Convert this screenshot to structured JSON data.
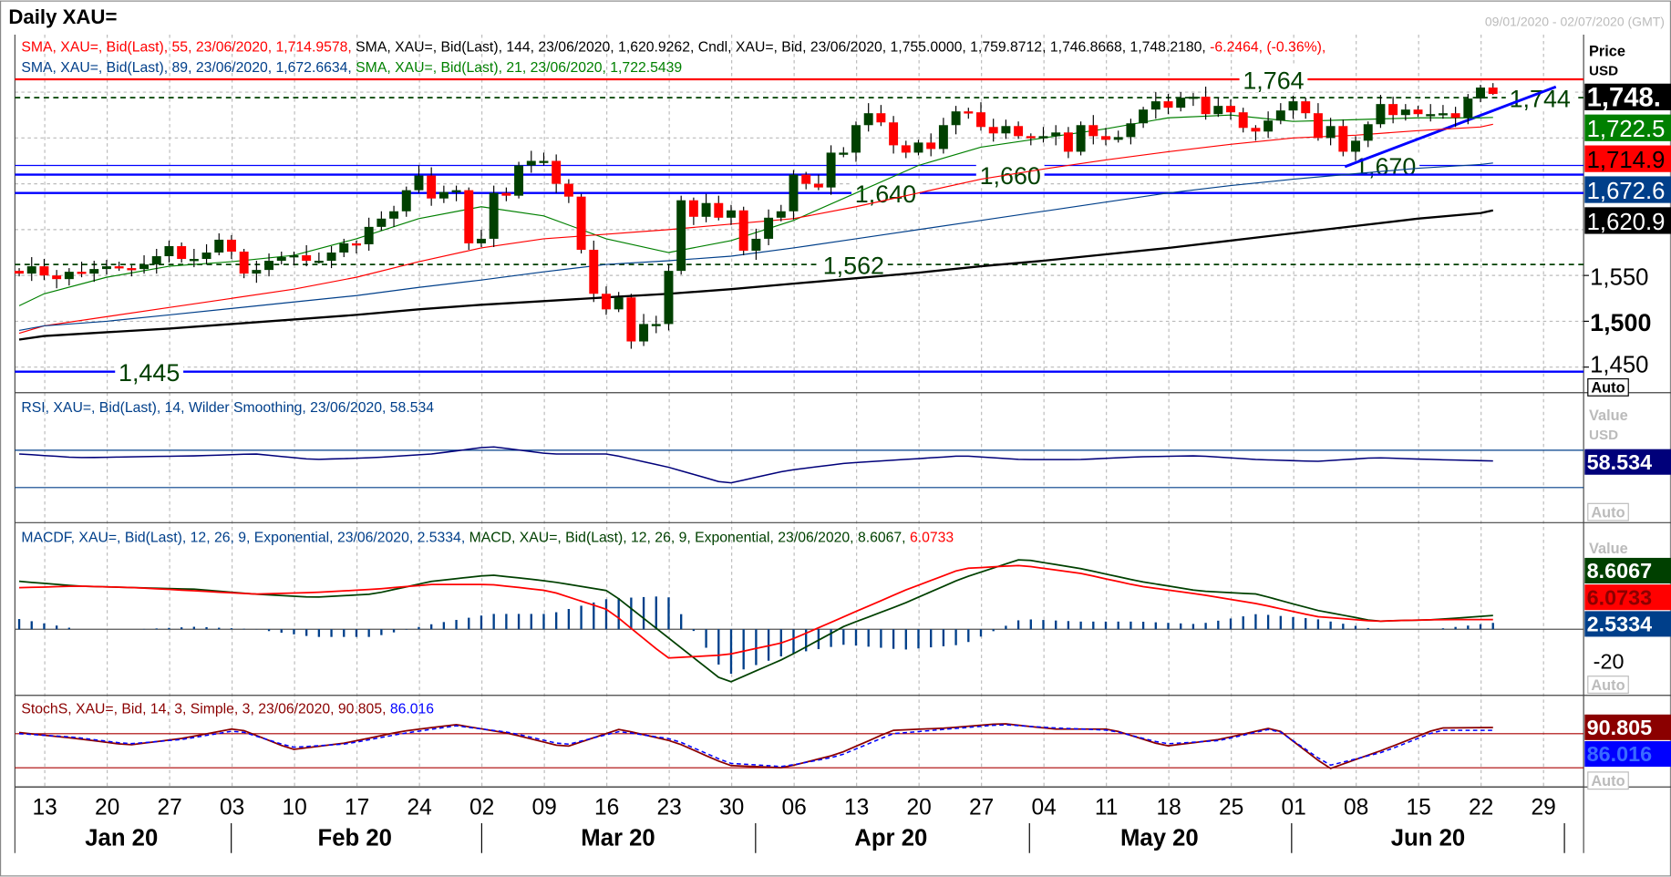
{
  "title": "Daily XAU=",
  "date_range": "09/01/2020 - 02/07/2020 (GMT)",
  "legend": {
    "line1": [
      {
        "text": "SMA, XAU=, Bid(Last),  55, 23/06/2020, 1,714.9578, ",
        "color": "#ff0000"
      },
      {
        "text": "SMA, XAU=, Bid(Last),  144, 23/06/2020, 1,620.9262, Cndl, XAU=, Bid, 23/06/2020, 1,755.0000, 1,759.8712, 1,746.8668, 1,748.2180, ",
        "color": "#000000"
      },
      {
        "text": "-6.2464, (-0.36%),",
        "color": "#ff0000"
      }
    ],
    "line2": [
      {
        "text": "SMA, XAU=, Bid(Last),  89, 23/06/2020, 1,672.6634, ",
        "color": "#003f8a"
      },
      {
        "text": "SMA, XAU=, Bid(Last),  21, 23/06/2020, 1,722.5439",
        "color": "#008000"
      }
    ]
  },
  "axis": {
    "price_title": "Price",
    "price_unit": "USD",
    "auto_label": "Auto",
    "value_title": "Value",
    "value_unit": "USD",
    "price_ticks": [
      "1,550",
      "1,500",
      "1,450"
    ],
    "price_tick_values": [
      1550,
      1500,
      1450
    ],
    "macd_tick": "-20",
    "badges": [
      {
        "text": "1,748.",
        "bg": "#000000",
        "fg": "#ffffff",
        "bold": true,
        "value": 1748.2
      },
      {
        "text": "1,722.5",
        "bg": "#008000",
        "fg": "#ffffff",
        "value": 1722.5
      },
      {
        "text": "1,714.9",
        "bg": "#ff0000",
        "fg": "#000000",
        "value": 1714.9
      },
      {
        "text": "1,672.6",
        "bg": "#003f8a",
        "fg": "#ffffff",
        "value": 1672.6
      },
      {
        "text": "1,620.9",
        "bg": "#000000",
        "fg": "#ffffff",
        "value": 1620.9
      }
    ],
    "rsi_badge": "58.534",
    "macd_badges": [
      "8.6067",
      "6.0733",
      "2.5334"
    ],
    "stoch_badges": [
      "90.805",
      "86.016"
    ]
  },
  "levels": [
    {
      "label": "1,764",
      "value": 1764,
      "color": "#ff0000",
      "style": "solid"
    },
    {
      "label": "1,744",
      "value": 1744,
      "color": "#004000",
      "style": "dashed"
    },
    {
      "label": "1,670",
      "value": 1670,
      "color": "#0000ff",
      "style": "solid"
    },
    {
      "label": "1,660",
      "value": 1660,
      "color": "#0000ff",
      "style": "solid"
    },
    {
      "label": "1,640",
      "value": 1640,
      "color": "#0000ff",
      "style": "solid"
    },
    {
      "label": "1,562",
      "value": 1562,
      "color": "#004000",
      "style": "dashed"
    },
    {
      "label": "1,445",
      "value": 1445,
      "color": "#0000ff",
      "style": "solid"
    }
  ],
  "x_axis": {
    "day_labels": [
      "13",
      "20",
      "27",
      "03",
      "10",
      "17",
      "24",
      "02",
      "09",
      "16",
      "23",
      "30",
      "06",
      "13",
      "20",
      "27",
      "04",
      "11",
      "18",
      "25",
      "01",
      "08",
      "15",
      "22",
      "29"
    ],
    "month_labels": [
      "Jan 20",
      "Feb 20",
      "Mar 20",
      "Apr 20",
      "May 20",
      "Jun 20"
    ]
  },
  "indicators": {
    "rsi_legend": "RSI, XAU=, Bid(Last),  14, Wilder Smoothing, 23/06/2020, 58.534",
    "macd_legend": [
      {
        "text": "MACDF, XAU=, Bid(Last),  12, 26, 9, Exponential, 23/06/2020, 2.5334, ",
        "color": "#003f8a"
      },
      {
        "text": "MACD, XAU=, Bid(Last),  12, 26, 9, Exponential, 23/06/2020, 8.6067, ",
        "color": "#004000"
      },
      {
        "text": "6.0733",
        "color": "#ff0000"
      }
    ],
    "stoch_legend": [
      {
        "text": "StochS, XAU=, Bid,  14, 3, Simple, 3, 23/06/2020, 90.805, ",
        "color": "#8b0000"
      },
      {
        "text": "86.016",
        "color": "#0000ff"
      }
    ]
  },
  "chart_data": {
    "type": "candlestick",
    "title": "Daily XAU=",
    "first_date": "2020-01-09",
    "last_date": "2020-06-23",
    "ylim": [
      1430,
      1790
    ],
    "closes": [
      1552,
      1560,
      1550,
      1546,
      1554,
      1552,
      1557,
      1560,
      1558,
      1557,
      1562,
      1571,
      1582,
      1568,
      1568,
      1575,
      1589,
      1576,
      1552,
      1556,
      1566,
      1570,
      1572,
      1566,
      1566,
      1575,
      1585,
      1584,
      1603,
      1612,
      1620,
      1643,
      1659,
      1634,
      1641,
      1643,
      1585,
      1590,
      1640,
      1637,
      1670,
      1675,
      1675,
      1650,
      1636,
      1578,
      1530,
      1513,
      1526,
      1478,
      1497,
      1497,
      1555,
      1632,
      1614,
      1629,
      1613,
      1621,
      1577,
      1590,
      1613,
      1620,
      1660,
      1650,
      1646,
      1684,
      1684,
      1714,
      1727,
      1717,
      1692,
      1684,
      1695,
      1688,
      1714,
      1729,
      1728,
      1712,
      1705,
      1713,
      1702,
      1700,
      1702,
      1706,
      1685,
      1714,
      1702,
      1698,
      1701,
      1716,
      1731,
      1740,
      1733,
      1744,
      1745,
      1726,
      1735,
      1728,
      1711,
      1707,
      1719,
      1730,
      1740,
      1727,
      1700,
      1713,
      1685,
      1697,
      1715,
      1737,
      1725,
      1731,
      1726,
      1726,
      1727,
      1722,
      1743,
      1755,
      1748
    ],
    "last_candle": {
      "open": 1755.0,
      "high": 1759.8712,
      "low": 1746.8668,
      "close": 1748.218
    },
    "sma_weekly": {
      "sma21": [
        1517,
        1530,
        1548,
        1560,
        1565,
        1572,
        1590,
        1612,
        1625,
        1615,
        1590,
        1575,
        1588,
        1610,
        1640,
        1670,
        1690,
        1700,
        1710,
        1722,
        1725,
        1718,
        1720,
        1722,
        1722,
        1722.5
      ],
      "sma55": [
        1487,
        1495,
        1505,
        1515,
        1525,
        1535,
        1548,
        1565,
        1580,
        1590,
        1595,
        1600,
        1606,
        1612,
        1625,
        1640,
        1655,
        1666,
        1676,
        1685,
        1693,
        1700,
        1703,
        1708,
        1712,
        1715
      ],
      "sma89": [
        1490,
        1495,
        1500,
        1507,
        1514,
        1521,
        1528,
        1537,
        1545,
        1554,
        1562,
        1566,
        1571,
        1580,
        1590,
        1600,
        1610,
        1620,
        1630,
        1640,
        1648,
        1655,
        1661,
        1667,
        1671,
        1672.7
      ],
      "sma144": [
        1480,
        1484,
        1488,
        1492,
        1497,
        1502,
        1507,
        1513,
        1518,
        1522,
        1526,
        1530,
        1535,
        1541,
        1547,
        1553,
        1560,
        1566,
        1573,
        1580,
        1588,
        1596,
        1604,
        1612,
        1618,
        1621
      ]
    },
    "rsi_weekly": [
      66,
      62,
      63,
      64,
      66,
      60,
      62,
      66,
      74,
      66,
      66,
      52,
      34,
      48,
      56,
      60,
      64,
      60,
      60,
      63,
      64,
      60,
      58,
      62,
      60,
      58.5
    ],
    "macd_weekly": [
      30,
      27,
      26,
      25,
      22,
      20,
      22,
      30,
      34,
      30,
      24,
      -5,
      -34,
      -18,
      2,
      16,
      32,
      44,
      38,
      30,
      24,
      22,
      12,
      5,
      6,
      8.6
    ],
    "signal_weekly": [
      26,
      27,
      26,
      24,
      22,
      23,
      25,
      28,
      28,
      24,
      12,
      -18,
      -16,
      -8,
      8,
      24,
      38,
      40,
      35,
      27,
      22,
      16,
      8,
      5,
      6,
      6.1
    ],
    "stoch_k_weekly": [
      82,
      72,
      60,
      72,
      90,
      52,
      64,
      84,
      96,
      80,
      56,
      88,
      66,
      24,
      20,
      44,
      86,
      90,
      98,
      88,
      88,
      58,
      70,
      92,
      18,
      52,
      90,
      90.8
    ],
    "stoch_d_weekly": [
      80,
      74,
      62,
      70,
      86,
      56,
      62,
      80,
      94,
      82,
      60,
      84,
      70,
      28,
      22,
      40,
      80,
      88,
      96,
      90,
      86,
      62,
      68,
      90,
      24,
      48,
      86,
      86.0
    ]
  }
}
